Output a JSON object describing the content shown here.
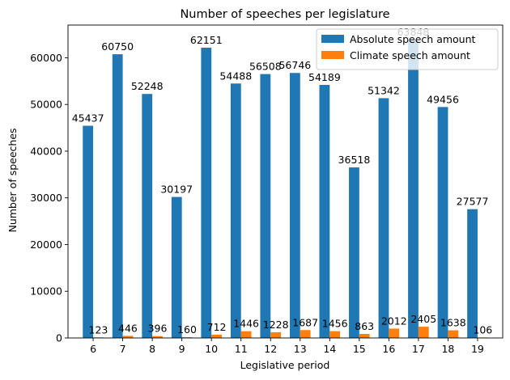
{
  "chart_data": {
    "type": "bar",
    "title": "Number of speeches per legislature",
    "xlabel": "Legislative period",
    "ylabel": "Number of speeches",
    "categories": [
      "6",
      "7",
      "8",
      "9",
      "10",
      "11",
      "12",
      "13",
      "14",
      "15",
      "16",
      "17",
      "18",
      "19"
    ],
    "series": [
      {
        "name": "Absolute speech amount",
        "color": "#1f77b4",
        "values": [
          45437,
          60750,
          52248,
          30197,
          62151,
          54488,
          56508,
          56746,
          54189,
          36518,
          51342,
          63848,
          49456,
          27577
        ]
      },
      {
        "name": "Climate speech amount",
        "color": "#ff7f0e",
        "values": [
          123,
          446,
          396,
          160,
          712,
          1446,
          1228,
          1687,
          1456,
          863,
          2012,
          2405,
          1638,
          106
        ]
      }
    ],
    "yticks": [
      0,
      10000,
      20000,
      30000,
      40000,
      50000,
      60000
    ],
    "ylim": [
      0,
      67000
    ],
    "legend_position": "top-right",
    "grid": false
  }
}
